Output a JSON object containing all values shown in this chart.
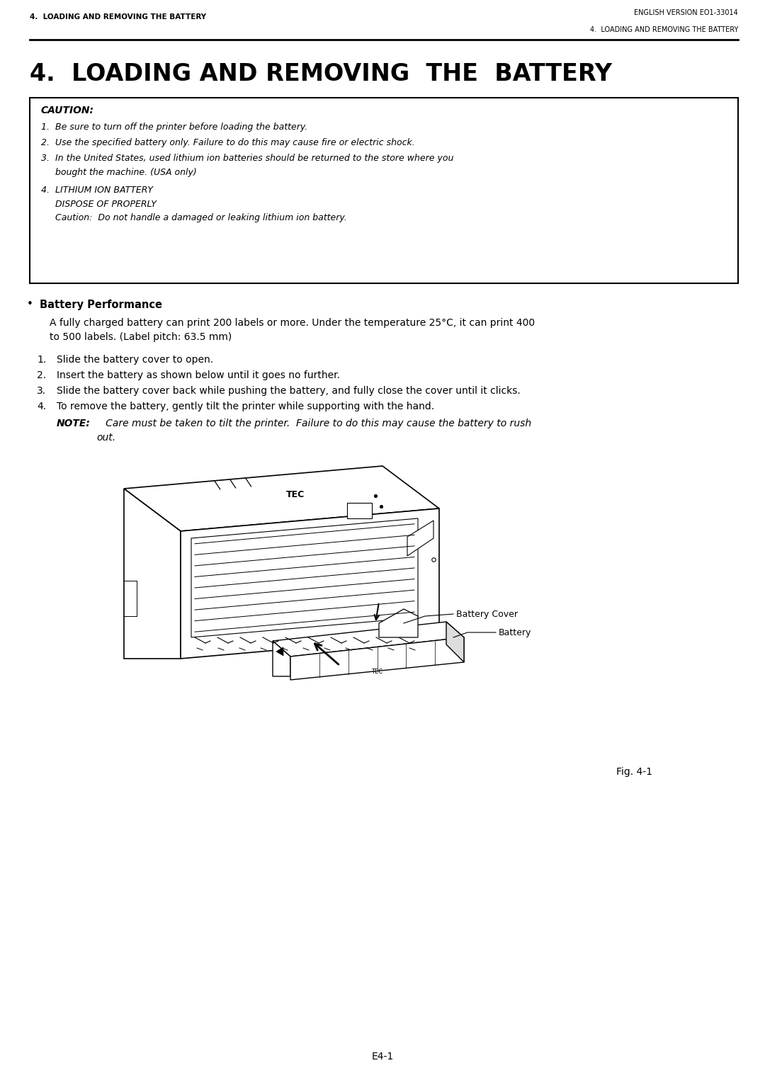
{
  "page_bg": "#ffffff",
  "header_left": "4.  LOADING AND REMOVING THE BATTERY",
  "header_right": "ENGLISH VERSION EO1-33014",
  "header_right2": "4.  LOADING AND REMOVING THE BATTERY",
  "main_title": "4.  LOADING AND REMOVING  THE  BATTERY",
  "caution_title": "CAUTION:",
  "bullet_title": "Battery Performance",
  "battery_perf_line1": "A fully charged battery can print 200 labels or more. Under the temperature 25°C, it can print 400",
  "battery_perf_line2": "to 500 labels. (Label pitch: 63.5 mm)",
  "steps": [
    "Slide the battery cover to open.",
    "Insert the battery as shown below until it goes no further.",
    "Slide the battery cover back while pushing the battery, and fully close the cover until it clicks.",
    "To remove the battery, gently tilt the printer while supporting with the hand."
  ],
  "note_bold": "NOTE:",
  "note_line1": "   Care must be taken to tilt the printer.  Failure to do this may cause the battery to rush",
  "note_line2": "out.",
  "label_battery_cover": "Battery Cover",
  "label_battery": "Battery",
  "fig_label": "Fig. 4-1",
  "footer": "E4-1",
  "caution_lines": [
    "1.  Be sure to turn off the printer before loading the battery.",
    "2.  Use the specified battery only. Failure to do this may cause fire or electric shock.",
    "3.  In the United States, used lithium ion batteries should be returned to the store where you",
    "     bought the machine. (USA only)",
    "4.  LITHIUM ION BATTERY",
    "     DISPOSE OF PROPERLY",
    "     Caution:  Do not handle a damaged or leaking lithium ion battery."
  ]
}
